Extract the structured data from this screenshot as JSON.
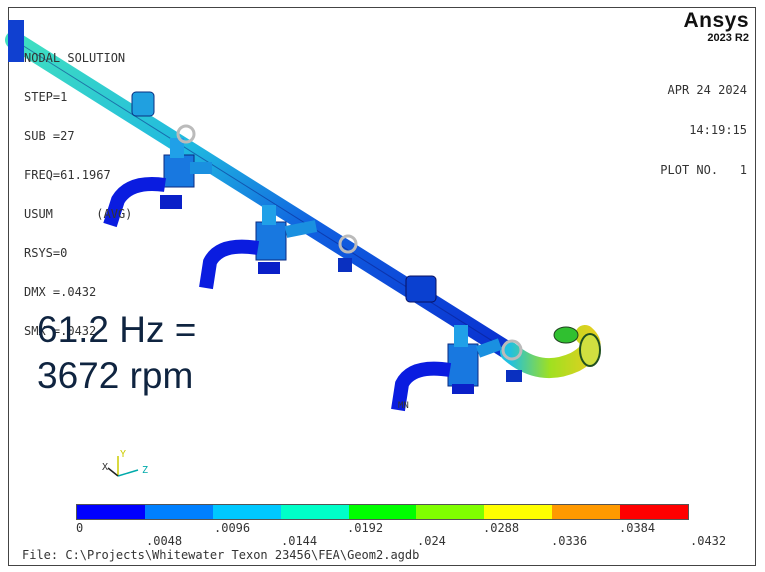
{
  "brand": {
    "name": "Ansys",
    "version": "2023 R2"
  },
  "info_lines": [
    "NODAL SOLUTION",
    "STEP=1",
    "SUB =27",
    "FREQ=61.1967",
    "USUM",
    "RSYS=0",
    "DMX =.0432",
    "SMX =.0432"
  ],
  "avg_label": "(AVG)",
  "stamp": {
    "date": "APR 24 2024",
    "time": "14:19:15",
    "plot": "PLOT NO.   1"
  },
  "annotation": {
    "line1": "61.2 Hz =",
    "line2": "3672 rpm"
  },
  "legend": {
    "colors": [
      "#0000ff",
      "#0080ff",
      "#00c8ff",
      "#00ffc8",
      "#00ff00",
      "#80ff00",
      "#ffff00",
      "#ff9900",
      "#ff0000"
    ],
    "labels_top": [
      "0",
      ".0096",
      ".0192",
      ".0288",
      ".0384"
    ],
    "labels_bottom": [
      ".0048",
      ".0144",
      ".024",
      ".0336",
      ".0432"
    ]
  },
  "triad": {
    "x": "X",
    "y": "Y",
    "z": "Z"
  },
  "node_label": "MN",
  "file_line": "File: C:\\Projects\\Whitewater Texon 23456\\FEA\\Geom2.agdb"
}
